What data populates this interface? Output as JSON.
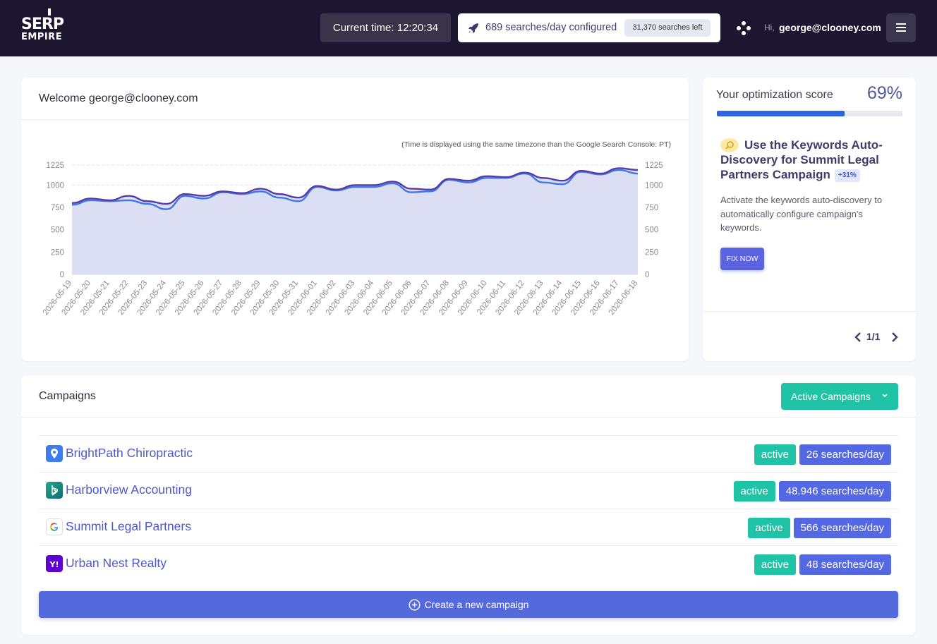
{
  "header": {
    "logo_line1": "SERP",
    "logo_line2": "EMPIRE",
    "current_time": "Current time: 12:20:34",
    "searches_configured": "689 searches/day configured",
    "searches_left": "31,370 searches left",
    "greeting": "Hi,",
    "user_email": "george@clooney.com",
    "icons": [
      "rocket-icon",
      "dots-icon",
      "menu-icon"
    ]
  },
  "welcome": {
    "title": "Welcome george@clooney.com",
    "chart_note": "(Time is displayed using the same timezone than the Google Search Console: PT)"
  },
  "chart_data": {
    "type": "area",
    "x": [
      "2026-05-19",
      "2026-05-20",
      "2026-05-21",
      "2026-05-22",
      "2026-05-23",
      "2026-05-24",
      "2026-05-25",
      "2026-05-26",
      "2026-05-27",
      "2026-05-28",
      "2026-05-29",
      "2026-05-30",
      "2026-05-31",
      "2026-06-01",
      "2026-06-02",
      "2026-06-03",
      "2026-06-04",
      "2026-06-05",
      "2026-06-06",
      "2026-06-07",
      "2026-06-08",
      "2026-06-09",
      "2026-06-10",
      "2026-06-11",
      "2026-06-12",
      "2026-06-13",
      "2026-06-14",
      "2026-06-15",
      "2026-06-16",
      "2026-06-17",
      "2026-06-18"
    ],
    "series": [
      {
        "color": "#5b3aa6",
        "values": [
          800,
          850,
          830,
          880,
          820,
          790,
          900,
          880,
          930,
          910,
          960,
          900,
          860,
          990,
          950,
          1000,
          1000,
          1040,
          960,
          950,
          1070,
          1050,
          1100,
          1090,
          1140,
          1080,
          1050,
          1160,
          1130,
          1190,
          1170
        ]
      },
      {
        "color": "#3a7ae8",
        "values": [
          780,
          830,
          820,
          830,
          790,
          730,
          880,
          850,
          920,
          900,
          930,
          860,
          820,
          980,
          940,
          980,
          980,
          1020,
          920,
          930,
          1060,
          1030,
          1080,
          1080,
          1130,
          1030,
          1010,
          1150,
          1120,
          1170,
          1130
        ]
      }
    ],
    "ylim": [
      0,
      1225
    ],
    "yticks": [
      0,
      250,
      500,
      750,
      1000,
      1225
    ],
    "grid": true,
    "fill_color": "#dcdef3"
  },
  "optimization": {
    "title": "Your optimization score",
    "score_label": "69%",
    "score_fraction": 0.69,
    "tip_title": "Use the Keywords Auto-Discovery for Summit Legal Partners Campaign",
    "tip_gain": "+31%",
    "tip_desc": "Activate the keywords auto-discovery to automatically configure campaign's keywords.",
    "fix_label": "FIX NOW",
    "pager": "1/1"
  },
  "campaigns": {
    "title": "Campaigns",
    "filter_label": "Active Campaigns",
    "create_label": "Create a new campaign",
    "items": [
      {
        "name": "BrightPath Chiropractic",
        "status": "active",
        "searches": "26 searches/day",
        "icon": "map-pin-icon"
      },
      {
        "name": "Harborview Accounting",
        "status": "active",
        "searches": "48.946 searches/day",
        "icon": "bing-icon"
      },
      {
        "name": "Summit Legal Partners",
        "status": "active",
        "searches": "566 searches/day",
        "icon": "google-icon"
      },
      {
        "name": "Urban Nest Realty",
        "status": "active",
        "searches": "48 searches/day",
        "icon": "yahoo-icon"
      }
    ]
  }
}
